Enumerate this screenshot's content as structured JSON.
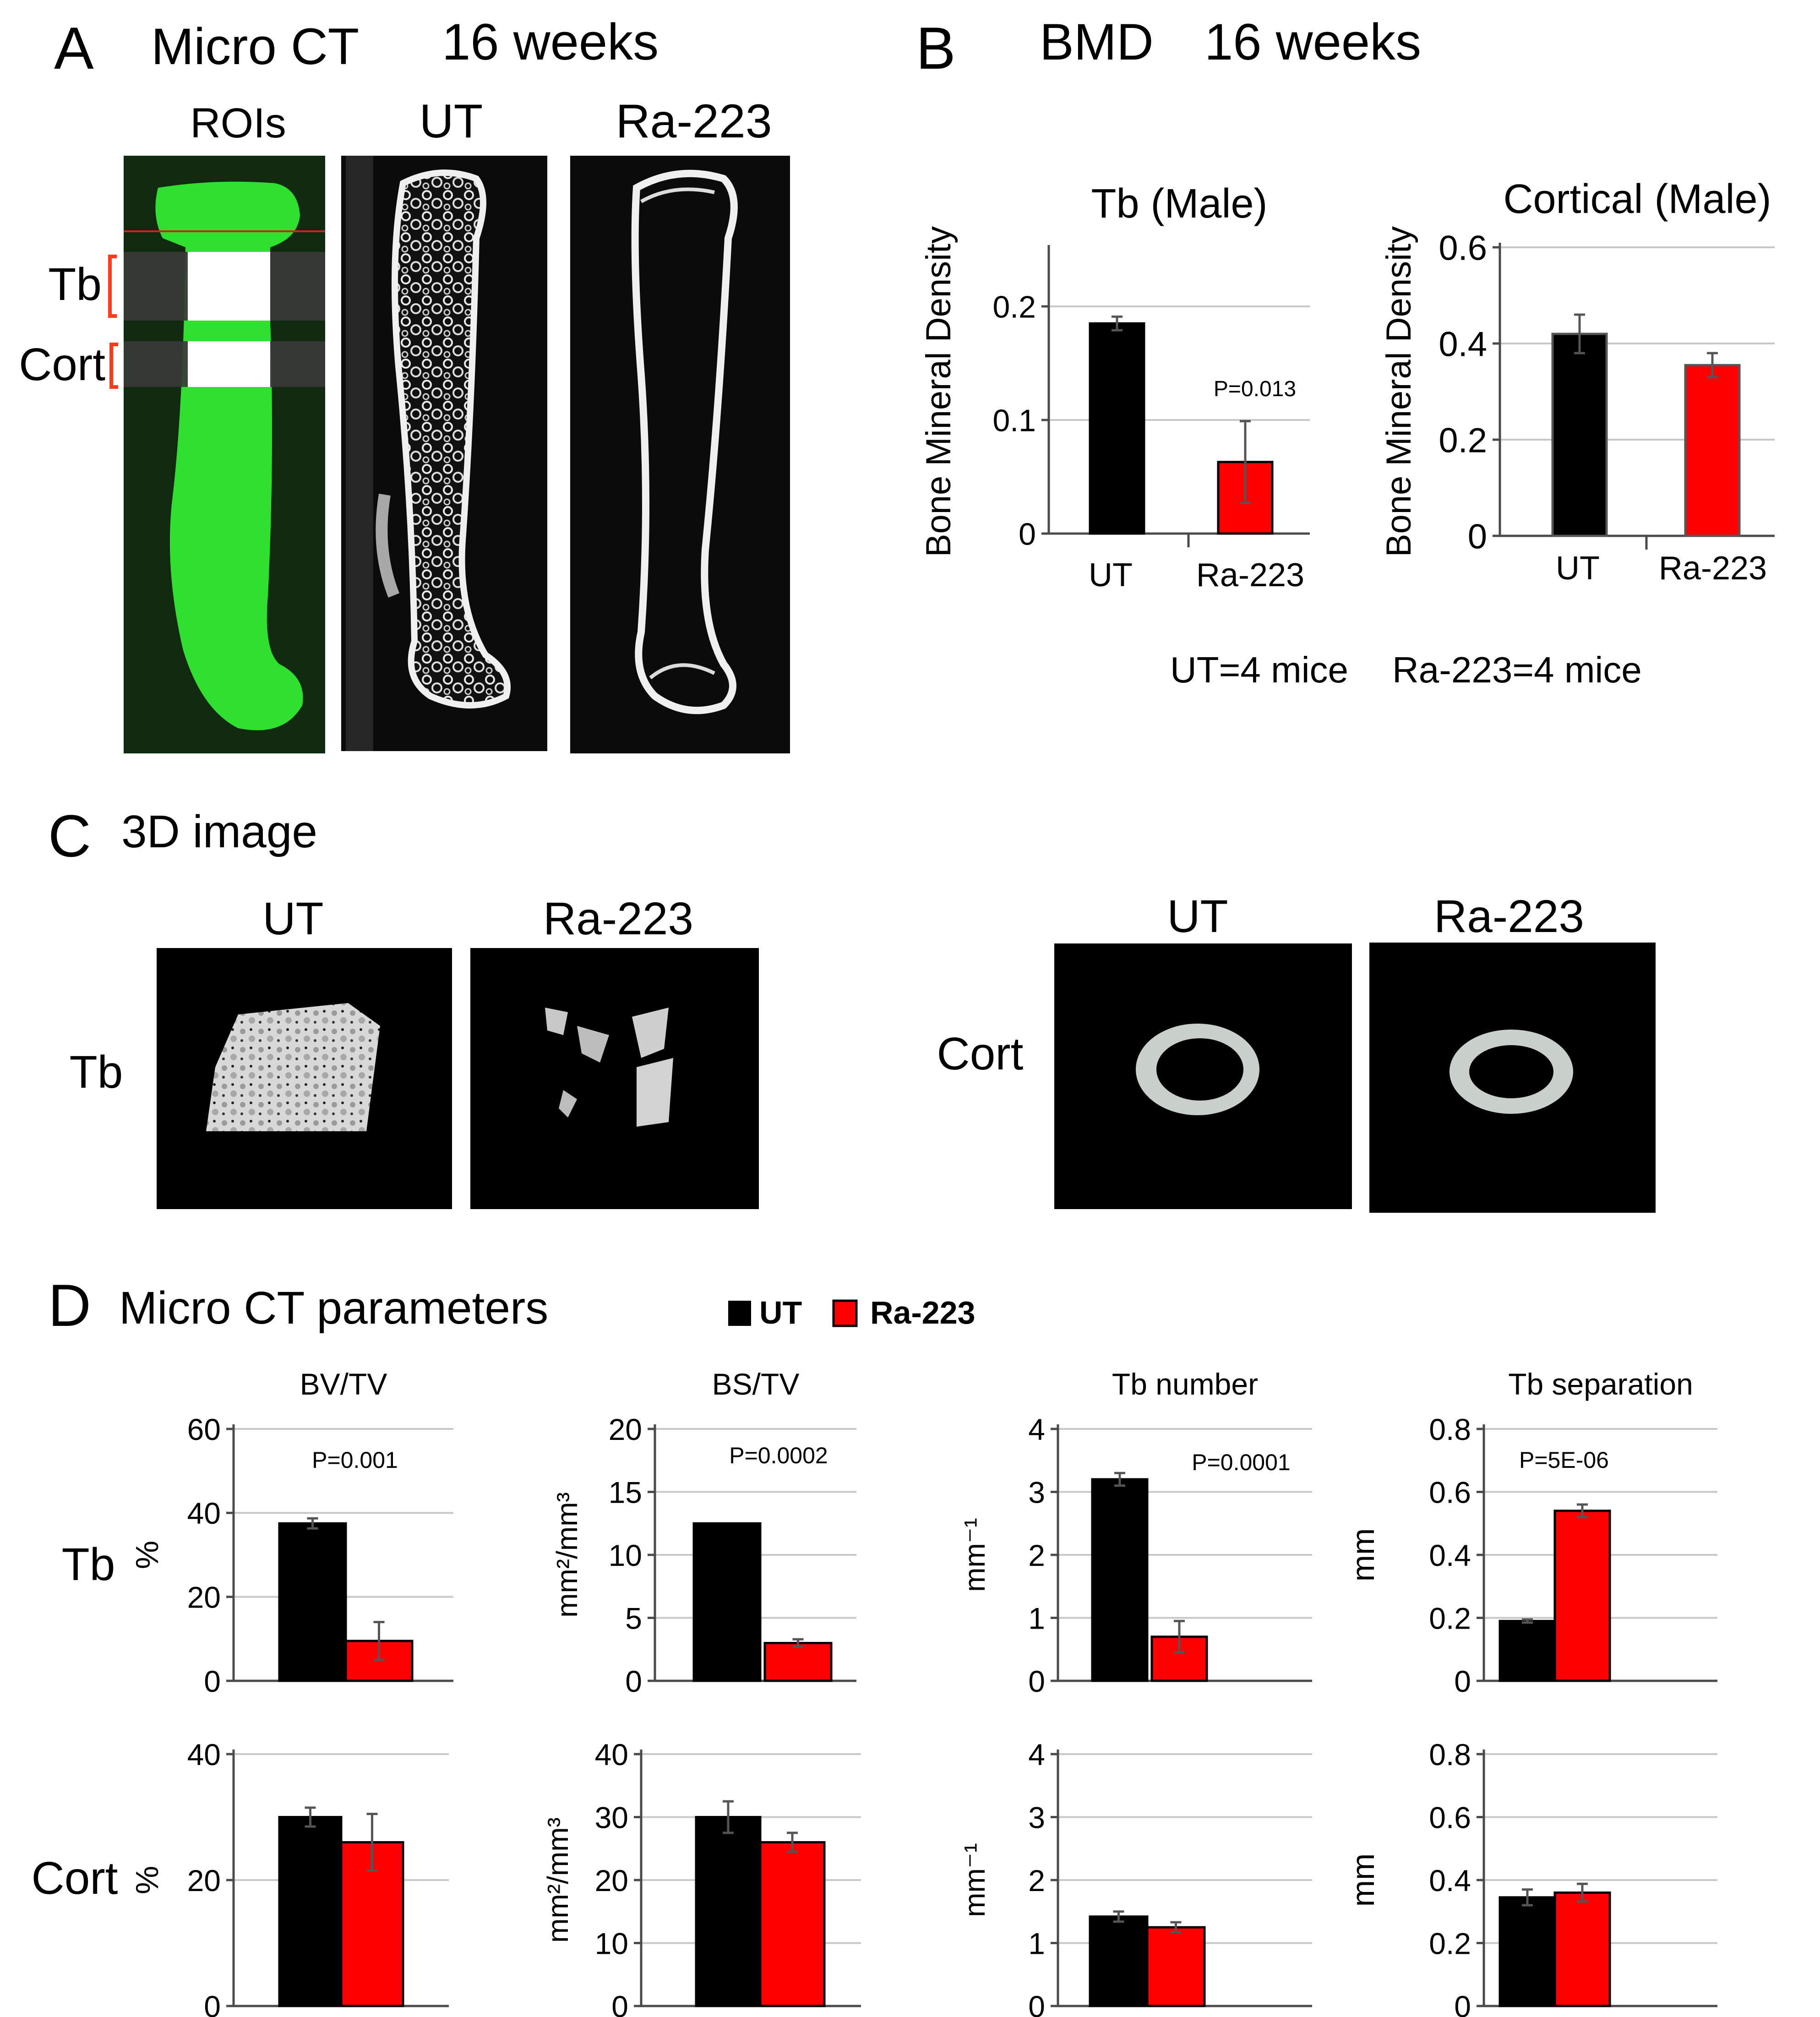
{
  "colors": {
    "ut": "#000000",
    "ra": "#ff0000",
    "roi_green": "#2fe02f",
    "grid": "#c8c8c8",
    "axis": "#4a4a4a",
    "err": "#555555",
    "band": "#3a3a3a",
    "ct_bg": "#0b0b0b"
  },
  "panelA": {
    "letter": "A",
    "title": "Micro CT",
    "time": "16 weeks",
    "col_rois": "ROIs",
    "col_ut": "UT",
    "col_ra": "Ra-223",
    "label_tb": "Tb",
    "label_cort": "Cort"
  },
  "panelB": {
    "letter": "B",
    "title": "BMD",
    "time": "16 weeks",
    "note_ut": "UT=4 mice",
    "note_ra": "Ra-223=4 mice"
  },
  "panelC": {
    "letter": "C",
    "title": "3D image",
    "col_ut_left": "UT",
    "col_ra_left": "Ra-223",
    "col_ut_right": "UT",
    "col_ra_right": "Ra-223",
    "row_tb": "Tb",
    "row_cort": "Cort"
  },
  "panelD": {
    "letter": "D",
    "title": "Micro CT parameters",
    "legend_ut": "UT",
    "legend_ra": "Ra-223",
    "row_tb": "Tb",
    "row_cort": "Cort"
  },
  "chart_data": [
    {
      "id": "bmd_tb",
      "type": "bar",
      "title": "Tb (Male)",
      "ylabel": "Bone Mineral Density",
      "categories": [
        "UT",
        "Ra-223"
      ],
      "values": [
        0.185,
        0.063
      ],
      "errors": [
        0.006,
        0.036
      ],
      "ylim": [
        0,
        0.25
      ],
      "yticks": [
        0,
        0.1,
        0.2
      ],
      "ytick_labels": [
        "0",
        "0.1",
        "0.2"
      ],
      "grid": true,
      "annotation": "P=0.013"
    },
    {
      "id": "bmd_cort",
      "type": "bar",
      "title": "Cortical (Male)",
      "ylabel": "Bone Mineral Density",
      "categories": [
        "UT",
        "Ra-223"
      ],
      "values": [
        0.42,
        0.355
      ],
      "errors": [
        0.04,
        0.025
      ],
      "ylim": [
        0,
        0.6
      ],
      "yticks": [
        0,
        0.2,
        0.4,
        0.6
      ],
      "ytick_labels": [
        "0",
        "0.2",
        "0.4",
        "0.6"
      ],
      "grid": true
    },
    {
      "id": "d_tb_bvtv",
      "type": "bar",
      "title": "BV/TV",
      "ylabel": "%",
      "series": [
        "UT",
        "Ra-223"
      ],
      "values": [
        37.5,
        9.5
      ],
      "errors": [
        1.2,
        4.5
      ],
      "ylim": [
        0,
        60
      ],
      "yticks": [
        0,
        20,
        40,
        60
      ],
      "ytick_labels": [
        "0",
        "20",
        "40",
        "60"
      ],
      "grid": true,
      "annotation": "P=0.001"
    },
    {
      "id": "d_tb_bstv",
      "type": "bar",
      "title": "BS/TV",
      "ylabel": "mm²/mm³",
      "series": [
        "UT",
        "Ra-223"
      ],
      "values": [
        12.5,
        3.0
      ],
      "errors": [
        0,
        0.3
      ],
      "ylim": [
        0,
        20
      ],
      "yticks": [
        0,
        5,
        10,
        15,
        20
      ],
      "ytick_labels": [
        "0",
        "5",
        "10",
        "15",
        "20"
      ],
      "grid": true,
      "annotation": "P=0.0002"
    },
    {
      "id": "d_tb_num",
      "type": "bar",
      "title": "Tb number",
      "ylabel": "mm⁻¹",
      "series": [
        "UT",
        "Ra-223"
      ],
      "values": [
        3.2,
        0.7
      ],
      "errors": [
        0.1,
        0.25
      ],
      "ylim": [
        0,
        4
      ],
      "yticks": [
        0,
        1,
        2,
        3,
        4
      ],
      "ytick_labels": [
        "0",
        "1",
        "2",
        "3",
        "4"
      ],
      "grid": true,
      "annotation": "P=0.0001"
    },
    {
      "id": "d_tb_sep",
      "type": "bar",
      "title": "Tb separation",
      "ylabel": "mm",
      "series": [
        "UT",
        "Ra-223"
      ],
      "values": [
        0.19,
        0.54
      ],
      "errors": [
        0.005,
        0.02
      ],
      "ylim": [
        0,
        0.8
      ],
      "yticks": [
        0,
        0.2,
        0.4,
        0.6,
        0.8
      ],
      "ytick_labels": [
        "0",
        "0.2",
        "0.4",
        "0.6",
        "0.8"
      ],
      "grid": true,
      "annotation": "P=5E-06"
    },
    {
      "id": "d_cort_bvtv",
      "type": "bar",
      "ylabel": "%",
      "series": [
        "UT",
        "Ra-223"
      ],
      "values": [
        30,
        26
      ],
      "errors": [
        1.5,
        4.5
      ],
      "ylim": [
        0,
        40
      ],
      "yticks": [
        0,
        20,
        40
      ],
      "ytick_labels": [
        "0",
        "20",
        "40"
      ],
      "grid": true
    },
    {
      "id": "d_cort_bstv",
      "type": "bar",
      "ylabel": "mm²/mm³",
      "series": [
        "UT",
        "Ra-223"
      ],
      "values": [
        30,
        26
      ],
      "errors": [
        2.5,
        1.5
      ],
      "ylim": [
        0,
        40
      ],
      "yticks": [
        0,
        10,
        20,
        30,
        40
      ],
      "ytick_labels": [
        "0",
        "10",
        "20",
        "30",
        "40"
      ],
      "grid": true
    },
    {
      "id": "d_cort_num",
      "type": "bar",
      "ylabel": "mm⁻¹",
      "series": [
        "UT",
        "Ra-223"
      ],
      "values": [
        1.42,
        1.25
      ],
      "errors": [
        0.08,
        0.08
      ],
      "ylim": [
        0,
        4
      ],
      "yticks": [
        0,
        1,
        2,
        3,
        4
      ],
      "ytick_labels": [
        "0",
        "1",
        "2",
        "3",
        "4"
      ],
      "grid": true
    },
    {
      "id": "d_cort_sep",
      "type": "bar",
      "ylabel": "mm",
      "series": [
        "UT",
        "Ra-223"
      ],
      "values": [
        0.345,
        0.36
      ],
      "errors": [
        0.025,
        0.028
      ],
      "ylim": [
        0,
        0.8
      ],
      "yticks": [
        0,
        0.2,
        0.4,
        0.6,
        0.8
      ],
      "ytick_labels": [
        "0",
        "0.2",
        "0.4",
        "0.6",
        "0.8"
      ],
      "grid": true
    }
  ]
}
